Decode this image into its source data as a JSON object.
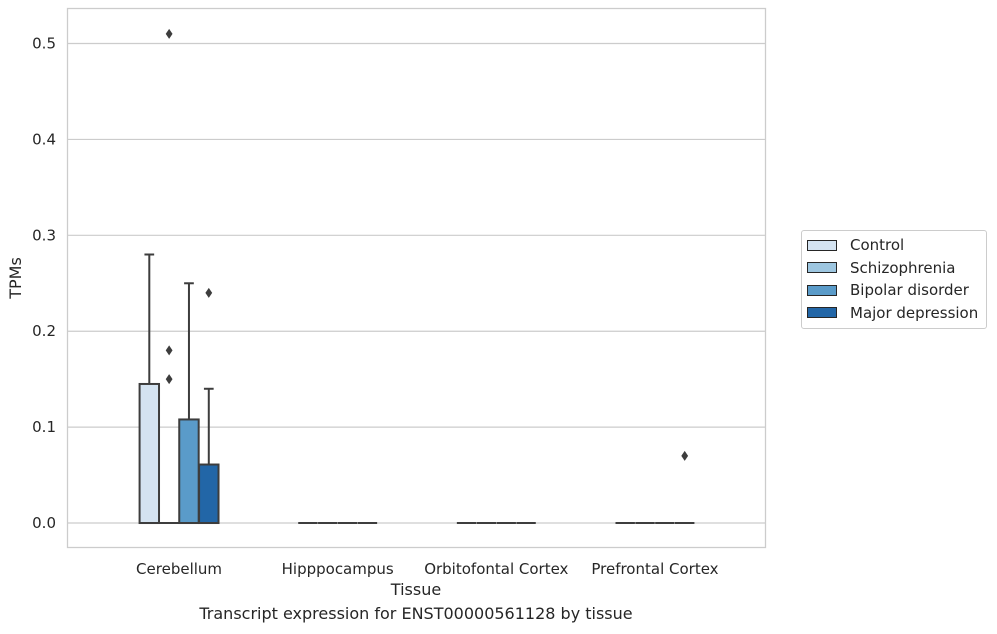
{
  "caption": "Transcript expression for ENST00000561128 by tissue",
  "chart_data": {
    "type": "box",
    "xlabel": "Tissue",
    "ylabel": "TPMs",
    "ylim": [
      -0.025,
      0.536
    ],
    "yticks": [
      0.0,
      0.1,
      0.2,
      0.3,
      0.4,
      0.5
    ],
    "ytick_labels": [
      "0.0",
      "0.1",
      "0.2",
      "0.3",
      "0.4",
      "0.5"
    ],
    "grid": "horizontal",
    "legend_position": "right",
    "categories": [
      "Cerebellum",
      "Hipppocampus",
      "Orbitofontal Cortex",
      "Prefrontal Cortex"
    ],
    "series": [
      {
        "name": "Control",
        "color": "#d4e3f1",
        "boxes": [
          {
            "q1": 0.0,
            "median": 0.0,
            "q3": 0.145,
            "whisker_low": 0.0,
            "whisker_high": 0.28,
            "outliers": []
          },
          {
            "q1": 0.0,
            "median": 0.0,
            "q3": 0.0,
            "whisker_low": 0.0,
            "whisker_high": 0.0,
            "outliers": []
          },
          {
            "q1": 0.0,
            "median": 0.0,
            "q3": 0.0,
            "whisker_low": 0.0,
            "whisker_high": 0.0,
            "outliers": []
          },
          {
            "q1": 0.0,
            "median": 0.0,
            "q3": 0.0,
            "whisker_low": 0.0,
            "whisker_high": 0.0,
            "outliers": []
          }
        ]
      },
      {
        "name": "Schizophrenia",
        "color": "#9dc6e0",
        "boxes": [
          {
            "q1": 0.0,
            "median": 0.0,
            "q3": 0.0,
            "whisker_low": 0.0,
            "whisker_high": 0.0,
            "outliers": [
              0.15,
              0.18,
              0.51
            ]
          },
          {
            "q1": 0.0,
            "median": 0.0,
            "q3": 0.0,
            "whisker_low": 0.0,
            "whisker_high": 0.0,
            "outliers": []
          },
          {
            "q1": 0.0,
            "median": 0.0,
            "q3": 0.0,
            "whisker_low": 0.0,
            "whisker_high": 0.0,
            "outliers": []
          },
          {
            "q1": 0.0,
            "median": 0.0,
            "q3": 0.0,
            "whisker_low": 0.0,
            "whisker_high": 0.0,
            "outliers": []
          }
        ]
      },
      {
        "name": "Bipolar disorder",
        "color": "#5a9bc9",
        "boxes": [
          {
            "q1": 0.0,
            "median": 0.0,
            "q3": 0.108,
            "whisker_low": 0.0,
            "whisker_high": 0.25,
            "outliers": []
          },
          {
            "q1": 0.0,
            "median": 0.0,
            "q3": 0.0,
            "whisker_low": 0.0,
            "whisker_high": 0.0,
            "outliers": []
          },
          {
            "q1": 0.0,
            "median": 0.0,
            "q3": 0.0,
            "whisker_low": 0.0,
            "whisker_high": 0.0,
            "outliers": []
          },
          {
            "q1": 0.0,
            "median": 0.0,
            "q3": 0.0,
            "whisker_low": 0.0,
            "whisker_high": 0.0,
            "outliers": []
          }
        ]
      },
      {
        "name": "Major depression",
        "color": "#2266a7",
        "boxes": [
          {
            "q1": 0.0,
            "median": 0.0,
            "q3": 0.061,
            "whisker_low": 0.0,
            "whisker_high": 0.14,
            "outliers": [
              0.24
            ]
          },
          {
            "q1": 0.0,
            "median": 0.0,
            "q3": 0.0,
            "whisker_low": 0.0,
            "whisker_high": 0.0,
            "outliers": []
          },
          {
            "q1": 0.0,
            "median": 0.0,
            "q3": 0.0,
            "whisker_low": 0.0,
            "whisker_high": 0.0,
            "outliers": []
          },
          {
            "q1": 0.0,
            "median": 0.0,
            "q3": 0.0,
            "whisker_low": 0.0,
            "whisker_high": 0.0,
            "outliers": [
              0.07
            ]
          }
        ]
      }
    ]
  }
}
